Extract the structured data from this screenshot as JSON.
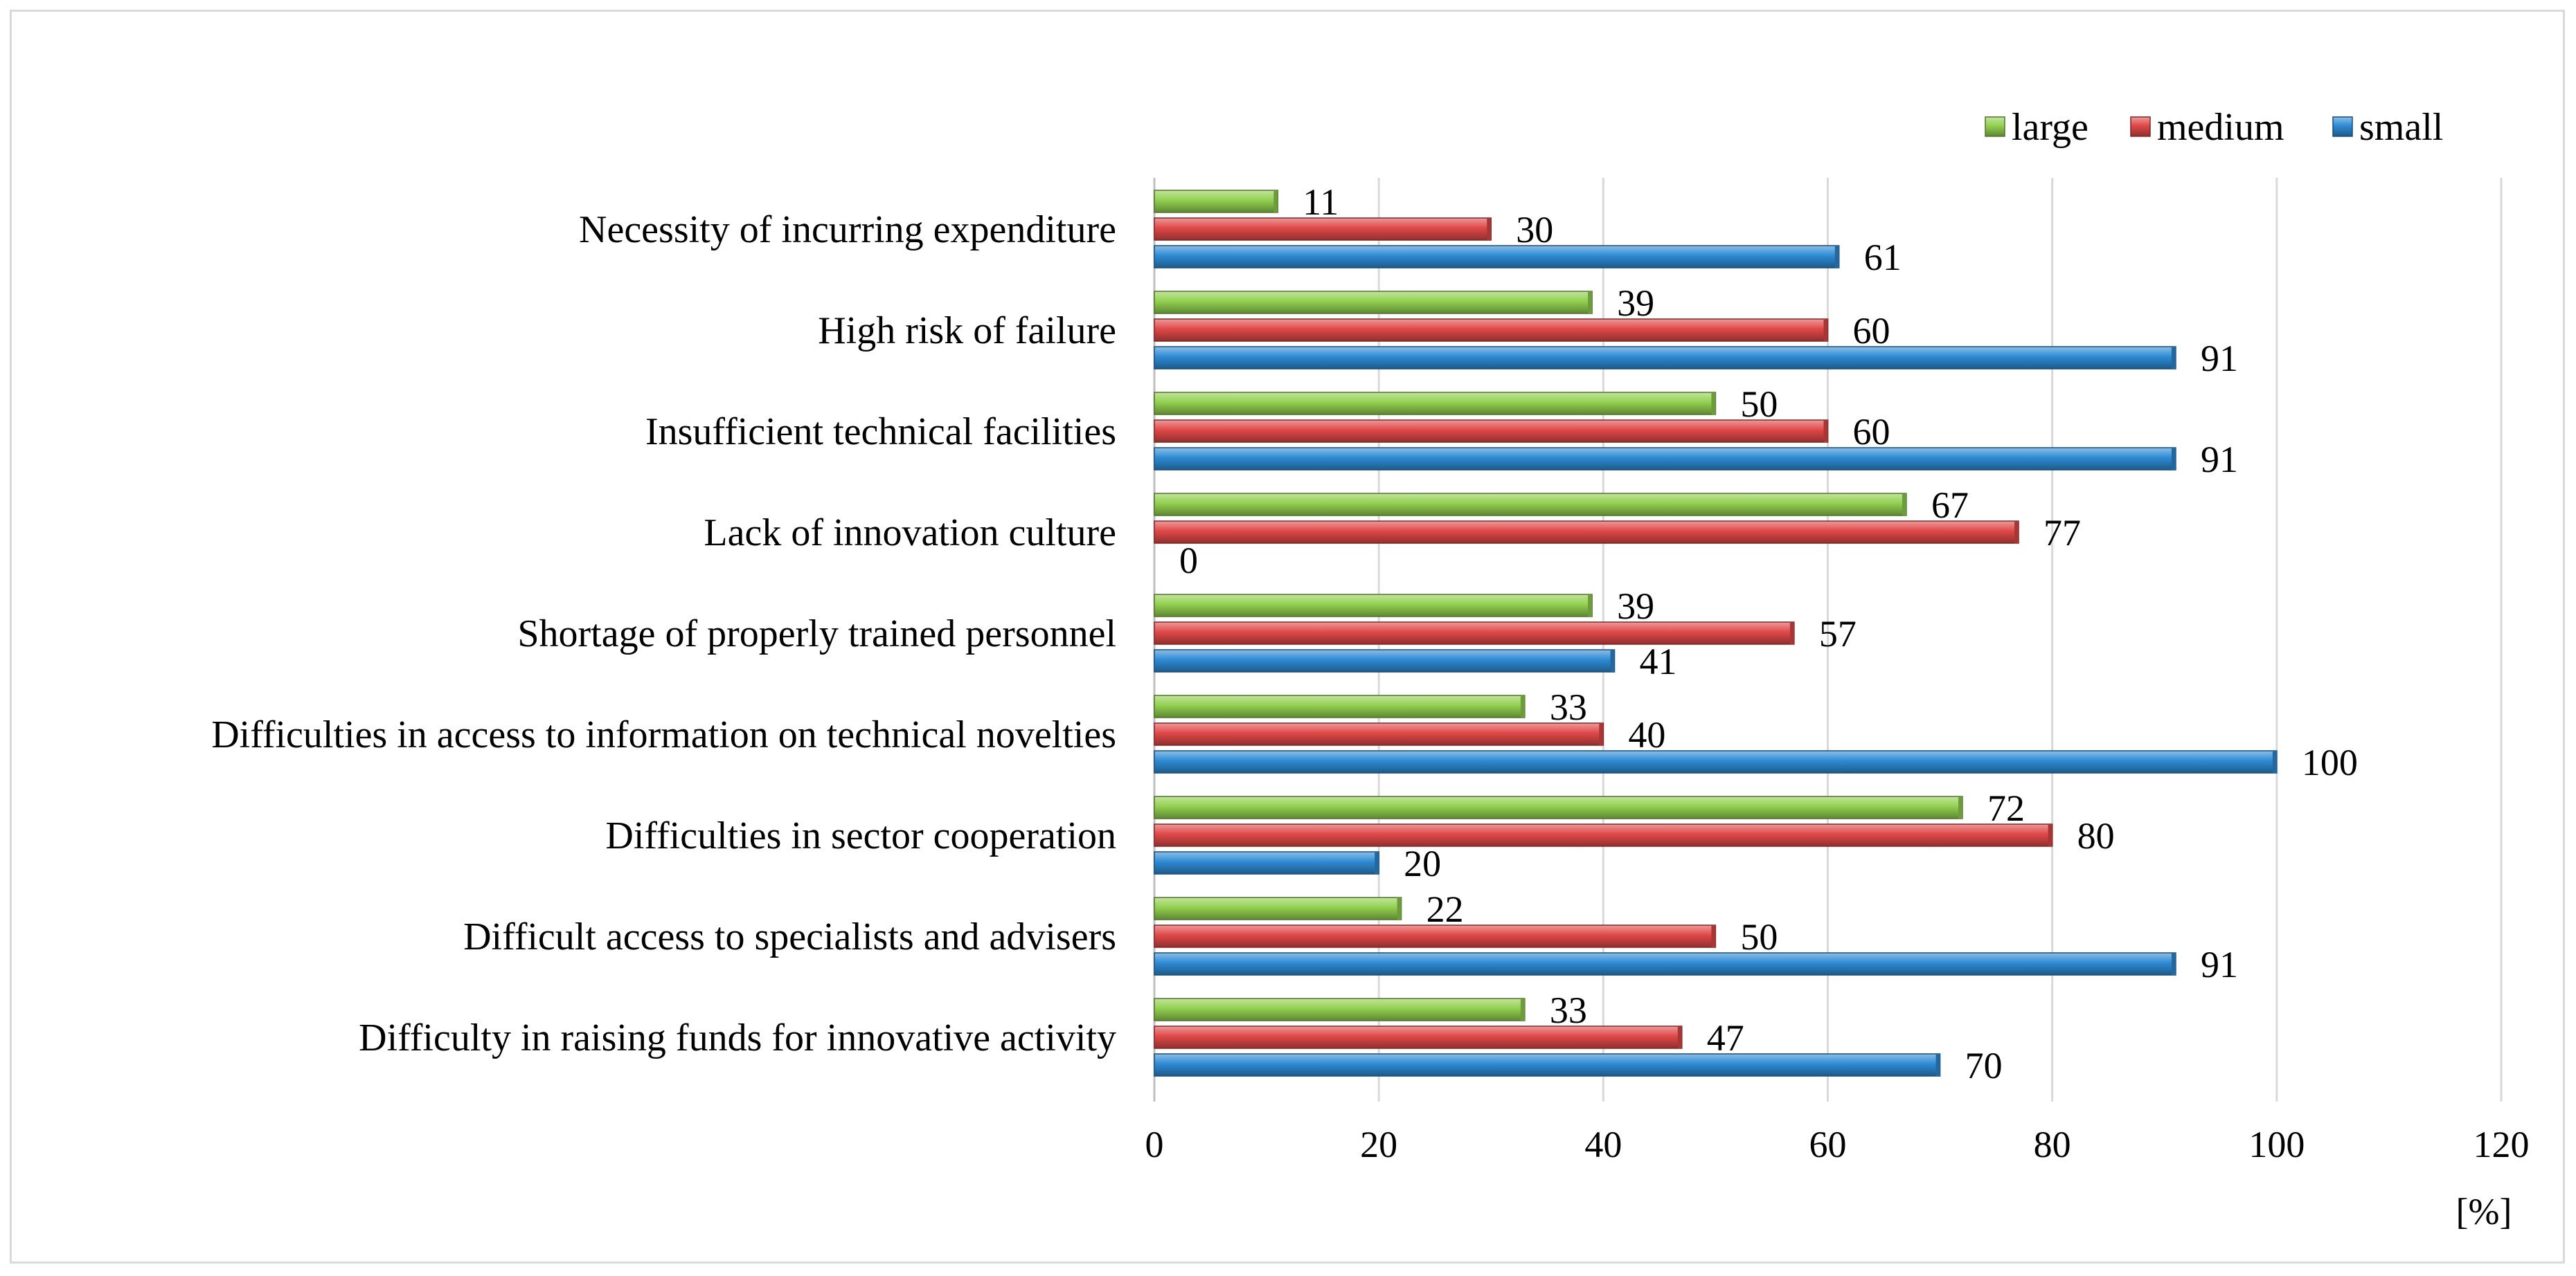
{
  "chart_data": {
    "type": "bar",
    "orientation": "horizontal",
    "categories": [
      "Necessity of incurring expenditure",
      "High risk of failure",
      "Insufficient technical facilities",
      "Lack of innovation culture",
      "Shortage of properly trained personnel",
      "Difficulties in access to information on technical novelties",
      "Difficulties in sector cooperation",
      "Difficult access to specialists and advisers",
      "Difficulty in raising funds for innovative activity"
    ],
    "series": [
      {
        "name": "large",
        "color": "#92d050",
        "values": [
          11,
          39,
          50,
          67,
          39,
          33,
          72,
          22,
          33
        ]
      },
      {
        "name": "medium",
        "color": "#e04848",
        "values": [
          30,
          60,
          60,
          77,
          57,
          40,
          80,
          50,
          47
        ]
      },
      {
        "name": "small",
        "color": "#2e8bd4",
        "values": [
          61,
          91,
          91,
          0,
          41,
          100,
          20,
          91,
          70
        ]
      }
    ],
    "xlim": [
      0,
      120
    ],
    "xticks": [
      0,
      20,
      40,
      60,
      80,
      100,
      120
    ],
    "xlabel": "[%]",
    "grid": true,
    "legend_position": "top-right"
  }
}
